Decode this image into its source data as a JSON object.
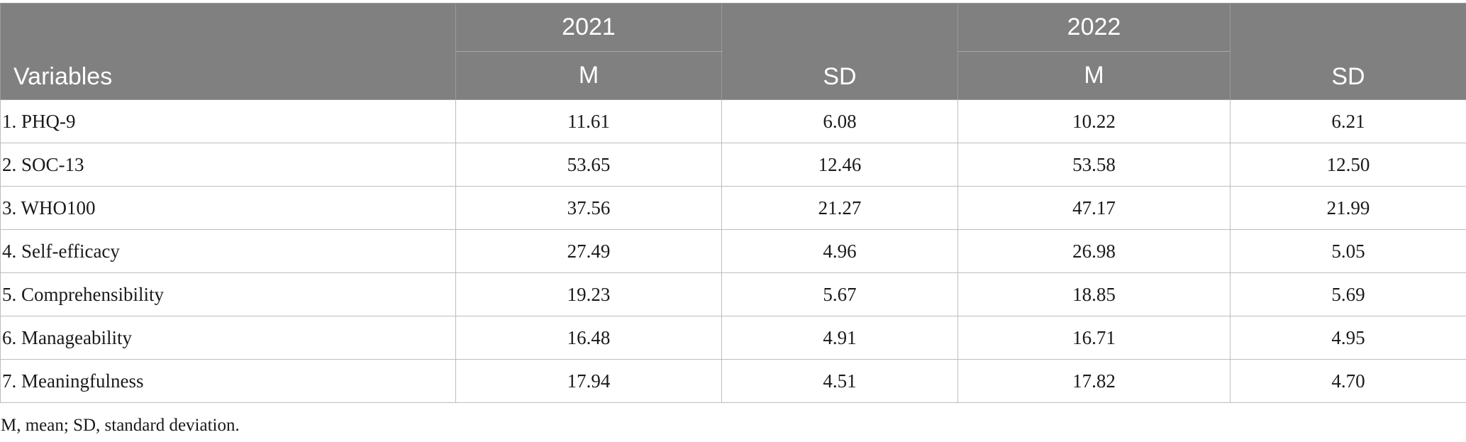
{
  "table": {
    "header": {
      "variables_label": "Variables",
      "years": [
        "2021",
        "2022"
      ],
      "stats": [
        "M",
        "SD",
        "M",
        "SD"
      ]
    },
    "rows": [
      {
        "variable": "1. PHQ-9",
        "m2021": "11.61",
        "sd2021": "6.08",
        "m2022": "10.22",
        "sd2022": "6.21"
      },
      {
        "variable": "2. SOC-13",
        "m2021": "53.65",
        "sd2021": "12.46",
        "m2022": "53.58",
        "sd2022": "12.50"
      },
      {
        "variable": "3. WHO100",
        "m2021": "37.56",
        "sd2021": "21.27",
        "m2022": "47.17",
        "sd2022": "21.99"
      },
      {
        "variable": "4. Self-efficacy",
        "m2021": "27.49",
        "sd2021": "4.96",
        "m2022": "26.98",
        "sd2022": "5.05"
      },
      {
        "variable": "5. Comprehensibility",
        "m2021": "19.23",
        "sd2021": "5.67",
        "m2022": "18.85",
        "sd2022": "5.69"
      },
      {
        "variable": "6. Manageability",
        "m2021": "16.48",
        "sd2021": "4.91",
        "m2022": "16.71",
        "sd2022": "4.95"
      },
      {
        "variable": "7. Meaningfulness",
        "m2021": "17.94",
        "sd2021": "4.51",
        "m2022": "17.82",
        "sd2022": "4.70"
      }
    ],
    "footnote": "M, mean; SD, standard deviation."
  },
  "colors": {
    "header_background": "#808080",
    "header_text": "#ffffff",
    "grid_line": "#bdbdbd"
  }
}
